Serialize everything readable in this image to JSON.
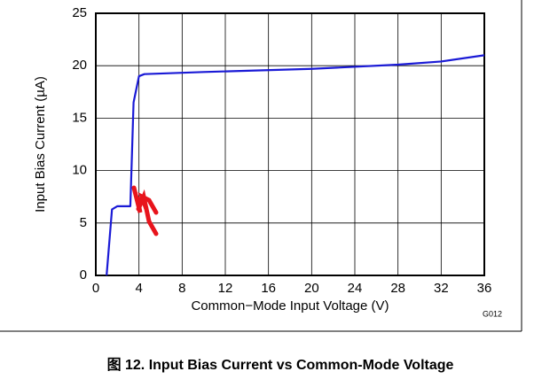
{
  "chart_data": {
    "type": "line",
    "xlabel": "Common−Mode Input Voltage (V)",
    "ylabel": "Input Bias Current (µA)",
    "note": "G012",
    "caption": "图 12. Input Bias Current vs Common-Mode Voltage",
    "x": [
      1,
      1.5,
      2,
      3.2,
      3.5,
      4,
      4.5,
      10,
      20,
      28,
      32,
      36
    ],
    "values": [
      0,
      6.3,
      6.6,
      6.6,
      16.5,
      19,
      19.2,
      19.4,
      19.7,
      20.1,
      20.4,
      21
    ],
    "color": "#1a1ad6",
    "xlim": [
      0,
      36
    ],
    "xticks": [
      0,
      4,
      8,
      12,
      16,
      20,
      24,
      28,
      32,
      36
    ],
    "ylim": [
      0,
      25
    ],
    "yticks": [
      0,
      5,
      10,
      15,
      20,
      25
    ],
    "grid": true
  }
}
